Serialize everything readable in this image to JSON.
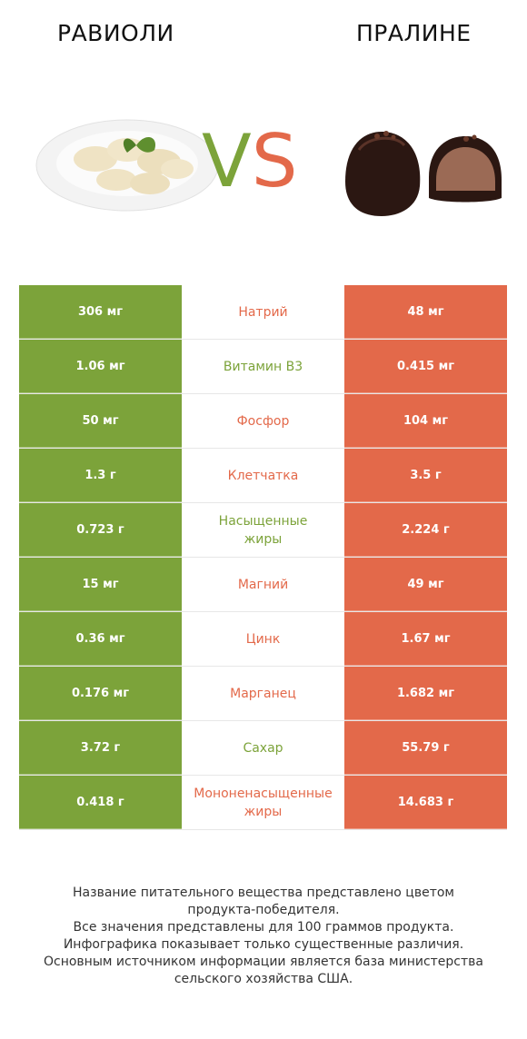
{
  "titles": {
    "left": "РАВИОЛИ",
    "right": "ПРАЛИНЕ"
  },
  "vs": {
    "v": "V",
    "s": "S"
  },
  "colors": {
    "left": "#7ca33a",
    "right": "#e3694a"
  },
  "rows": [
    {
      "left": "306 мг",
      "name": "Натрий",
      "right": "48 мг",
      "winner": "right"
    },
    {
      "left": "1.06 мг",
      "name": "Витамин B3",
      "right": "0.415 мг",
      "winner": "left"
    },
    {
      "left": "50 мг",
      "name": "Фосфор",
      "right": "104 мг",
      "winner": "right"
    },
    {
      "left": "1.3 г",
      "name": "Клетчатка",
      "right": "3.5 г",
      "winner": "right"
    },
    {
      "left": "0.723 г",
      "name": "Насыщенные\nжиры",
      "right": "2.224 г",
      "winner": "left"
    },
    {
      "left": "15 мг",
      "name": "Магний",
      "right": "49 мг",
      "winner": "right"
    },
    {
      "left": "0.36 мг",
      "name": "Цинк",
      "right": "1.67 мг",
      "winner": "right"
    },
    {
      "left": "0.176 мг",
      "name": "Марганец",
      "right": "1.682 мг",
      "winner": "right"
    },
    {
      "left": "3.72 г",
      "name": "Сахар",
      "right": "55.79 г",
      "winner": "left"
    },
    {
      "left": "0.418 г",
      "name": "Мононенасыщенные\nжиры",
      "right": "14.683 г",
      "winner": "right"
    }
  ],
  "footer": {
    "line1": "Название питательного вещества представлено цветом",
    "line2": "продукта-победителя.",
    "line3": "Все значения представлены для 100 граммов продукта.",
    "line4": "Инфографика показывает только существенные различия.",
    "line5": "Основным источником информации является база министерства",
    "line6": "сельского хозяйства США."
  }
}
